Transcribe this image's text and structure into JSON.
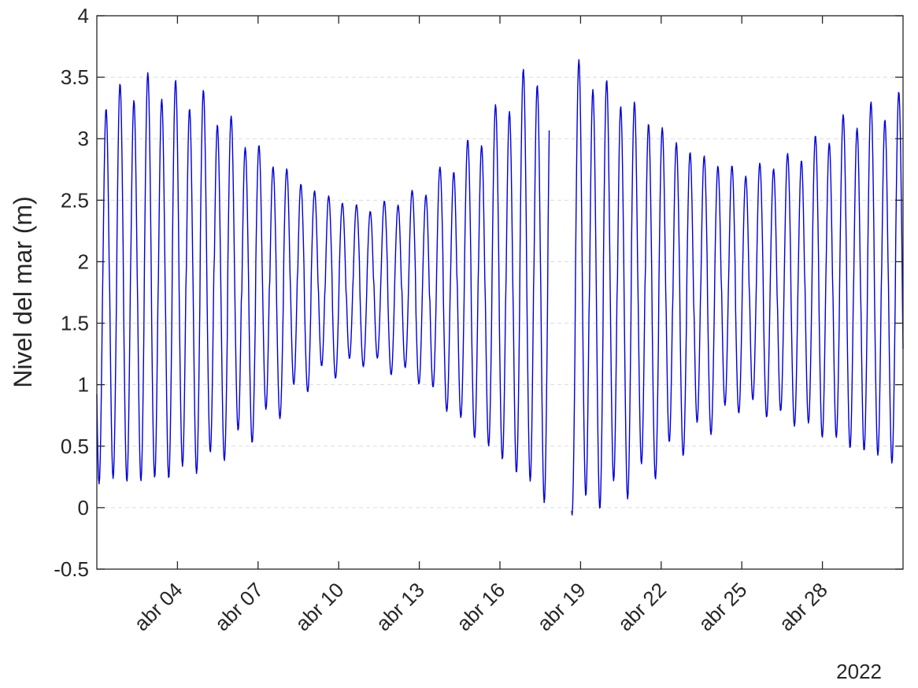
{
  "chart_data": {
    "type": "line",
    "title": "",
    "xlabel": "",
    "ylabel": "Nivel del mar (m)",
    "year_label": "2022",
    "ylim": [
      -0.5,
      4
    ],
    "yticks": [
      "-0.5",
      "0",
      "0.5",
      "1",
      "1.5",
      "2",
      "2.5",
      "3",
      "3.5",
      "4"
    ],
    "ytick_values": [
      -0.5,
      0,
      0.5,
      1,
      1.5,
      2,
      2.5,
      3,
      3.5,
      4
    ],
    "xlim": [
      "2022-04-01 00:00",
      "2022-05-01 00:00"
    ],
    "xticks": [
      "abr 04",
      "abr 07",
      "abr 10",
      "abr 13",
      "abr 16",
      "abr 19",
      "abr 22",
      "abr 25",
      "abr 28"
    ],
    "xtick_dates": [
      "2022-04-04",
      "2022-04-07",
      "2022-04-10",
      "2022-04-13",
      "2022-04-16",
      "2022-04-19",
      "2022-04-22",
      "2022-04-25",
      "2022-04-28"
    ],
    "grid": "y-dashed",
    "color": "#0000dd",
    "mean_level": 1.82,
    "sampling_interval_hours": 1,
    "series_start": "2022-04-01 00:00",
    "series_end": "2022-05-01 00:00",
    "gap": [
      "2022-04-17 20:00",
      "2022-04-18 16:00"
    ],
    "high_tide_envelope": {
      "dates": [
        "2022-04-01",
        "2022-04-03",
        "2022-04-05",
        "2022-04-07",
        "2022-04-09",
        "2022-04-11",
        "2022-04-13",
        "2022-04-15",
        "2022-04-17",
        "2022-04-18",
        "2022-04-19",
        "2022-04-21",
        "2022-04-23",
        "2022-04-25",
        "2022-04-27",
        "2022-04-29",
        "2022-05-01"
      ],
      "values": [
        3.3,
        3.45,
        3.3,
        2.9,
        2.58,
        2.42,
        2.55,
        2.95,
        3.5,
        3.6,
        3.55,
        3.25,
        2.9,
        2.72,
        2.85,
        3.15,
        3.3
      ]
    },
    "low_tide_envelope": {
      "dates": [
        "2022-04-01",
        "2022-04-03",
        "2022-04-05",
        "2022-04-07",
        "2022-04-09",
        "2022-04-11",
        "2022-04-13",
        "2022-04-15",
        "2022-04-17",
        "2022-04-18",
        "2022-04-19",
        "2022-04-21",
        "2022-04-23",
        "2022-04-25",
        "2022-04-27",
        "2022-04-29",
        "2022-05-01"
      ],
      "values": [
        0.22,
        0.22,
        0.35,
        0.65,
        1.05,
        1.2,
        1.05,
        0.6,
        0.22,
        0.0,
        0.0,
        0.2,
        0.55,
        0.85,
        0.7,
        0.5,
        0.35
      ]
    },
    "diurnal_amplitude_envelope": {
      "dates": [
        "2022-04-01",
        "2022-04-06",
        "2022-04-11",
        "2022-04-16",
        "2022-04-21",
        "2022-04-26",
        "2022-05-01"
      ],
      "values": [
        0.08,
        0.12,
        0.05,
        0.1,
        0.12,
        0.06,
        0.1
      ]
    }
  }
}
